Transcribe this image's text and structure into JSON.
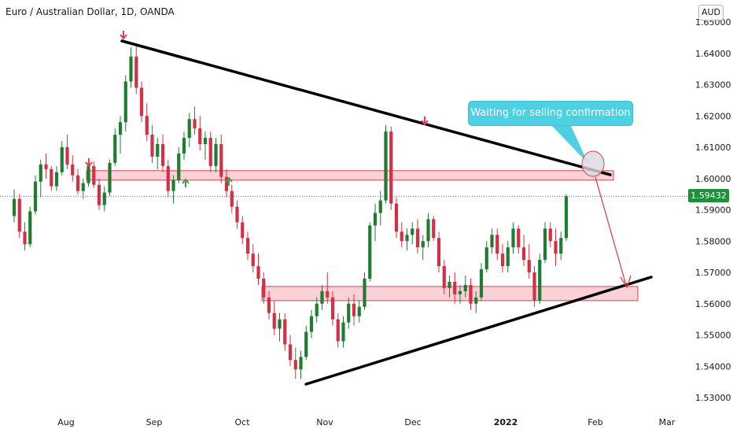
{
  "header": {
    "symbol_title": "Euro / Australian Dollar, 1D, OANDA",
    "currency": "AUD"
  },
  "colors": {
    "up": "#1e7d32",
    "down": "#d32f45",
    "zone_fill": "#f8c9cf",
    "zone_stroke": "#e0404f",
    "trendline": "#000000",
    "callout": "#4dd0e1",
    "arrow_down": "#e0404f",
    "arrow_up": "#43a047"
  },
  "annotation": {
    "callout_text": "Waiting for selling confirmation"
  },
  "chart_data": {
    "type": "candlestick",
    "title": "Euro / Australian Dollar, 1D, OANDA",
    "ylabel": "AUD",
    "ylim": [
      1.525,
      1.652
    ],
    "current_price": "1.59432",
    "y_ticks": [
      "1.65000",
      "1.64000",
      "1.63000",
      "1.62000",
      "1.61000",
      "1.60000",
      "1.59000",
      "1.58000",
      "1.57000",
      "1.56000",
      "1.55000",
      "1.54000",
      "1.53000"
    ],
    "x_ticks": [
      "Aug",
      "Sep",
      "Oct",
      "Nov",
      "Dec",
      "2022",
      "Feb",
      "Mar"
    ],
    "resistance_zone": [
      1.6004,
      1.6015
    ],
    "support_zone": [
      1.5627,
      1.5645
    ],
    "upper_trendline": {
      "from": [
        "Aug 20",
        1.6435
      ],
      "to": [
        "Feb 1",
        1.6002
      ]
    },
    "lower_trendline": {
      "from": [
        "Oct 31",
        1.5335
      ],
      "to": [
        "Feb 20",
        1.5677
      ]
    },
    "down_arrows": [
      "Aug 20",
      "Aug 8",
      "Dec 3"
    ],
    "up_arrows": [
      "Sep 10",
      "Sep 27"
    ],
    "candles": [
      [
        1.588,
        1.5965,
        1.586,
        1.5935
      ],
      [
        1.5935,
        1.595,
        1.581,
        1.583
      ],
      [
        1.583,
        1.586,
        1.577,
        1.579
      ],
      [
        1.579,
        1.591,
        1.578,
        1.5895
      ],
      [
        1.5895,
        1.601,
        1.5885,
        1.599
      ],
      [
        1.599,
        1.606,
        1.594,
        1.6045
      ],
      [
        1.6045,
        1.608,
        1.6,
        1.603
      ],
      [
        1.603,
        1.604,
        1.596,
        1.5975
      ],
      [
        1.5975,
        1.604,
        1.596,
        1.602
      ],
      [
        1.602,
        1.612,
        1.601,
        1.61
      ],
      [
        1.61,
        1.614,
        1.603,
        1.6045
      ],
      [
        1.6045,
        1.6075,
        1.599,
        1.601
      ],
      [
        1.601,
        1.603,
        1.595,
        1.596
      ],
      [
        1.596,
        1.6,
        1.5935,
        1.5985
      ],
      [
        1.5985,
        1.6055,
        1.5975,
        1.604
      ],
      [
        1.604,
        1.6055,
        1.597,
        1.598
      ],
      [
        1.598,
        1.6,
        1.59,
        1.5915
      ],
      [
        1.5915,
        1.5975,
        1.5895,
        1.5955
      ],
      [
        1.5955,
        1.606,
        1.5945,
        1.605
      ],
      [
        1.605,
        1.616,
        1.604,
        1.614
      ],
      [
        1.614,
        1.62,
        1.608,
        1.618
      ],
      [
        1.618,
        1.633,
        1.615,
        1.631
      ],
      [
        1.631,
        1.642,
        1.629,
        1.639
      ],
      [
        1.639,
        1.643,
        1.627,
        1.629
      ],
      [
        1.629,
        1.631,
        1.618,
        1.62
      ],
      [
        1.62,
        1.624,
        1.612,
        1.614
      ],
      [
        1.614,
        1.617,
        1.605,
        1.607
      ],
      [
        1.607,
        1.613,
        1.603,
        1.611
      ],
      [
        1.611,
        1.614,
        1.602,
        1.604
      ],
      [
        1.604,
        1.606,
        1.594,
        1.596
      ],
      [
        1.596,
        1.601,
        1.592,
        1.5995
      ],
      [
        1.5995,
        1.61,
        1.5985,
        1.608
      ],
      [
        1.608,
        1.615,
        1.606,
        1.613
      ],
      [
        1.613,
        1.621,
        1.61,
        1.619
      ],
      [
        1.619,
        1.623,
        1.614,
        1.616
      ],
      [
        1.616,
        1.62,
        1.609,
        1.611
      ],
      [
        1.611,
        1.615,
        1.606,
        1.613
      ],
      [
        1.613,
        1.615,
        1.602,
        1.604
      ],
      [
        1.604,
        1.613,
        1.602,
        1.611
      ],
      [
        1.611,
        1.614,
        1.5985,
        1.6005
      ],
      [
        1.6005,
        1.603,
        1.594,
        1.596
      ],
      [
        1.596,
        1.598,
        1.589,
        1.591
      ],
      [
        1.591,
        1.593,
        1.584,
        1.586
      ],
      [
        1.586,
        1.588,
        1.579,
        1.581
      ],
      [
        1.581,
        1.583,
        1.574,
        1.576
      ],
      [
        1.576,
        1.579,
        1.57,
        1.572
      ],
      [
        1.572,
        1.576,
        1.566,
        1.568
      ],
      [
        1.568,
        1.57,
        1.56,
        1.562
      ],
      [
        1.562,
        1.564,
        1.555,
        1.557
      ],
      [
        1.557,
        1.561,
        1.55,
        1.552
      ],
      [
        1.552,
        1.557,
        1.548,
        1.555
      ],
      [
        1.555,
        1.557,
        1.545,
        1.547
      ],
      [
        1.547,
        1.55,
        1.54,
        1.542
      ],
      [
        1.542,
        1.546,
        1.536,
        1.539
      ],
      [
        1.539,
        1.545,
        1.536,
        1.543
      ],
      [
        1.543,
        1.553,
        1.542,
        1.551
      ],
      [
        1.551,
        1.558,
        1.549,
        1.556
      ],
      [
        1.556,
        1.562,
        1.554,
        1.56
      ],
      [
        1.56,
        1.566,
        1.558,
        1.564
      ],
      [
        1.564,
        1.57,
        1.56,
        1.562
      ],
      [
        1.562,
        1.564,
        1.553,
        1.555
      ],
      [
        1.555,
        1.557,
        1.546,
        1.548
      ],
      [
        1.548,
        1.556,
        1.546,
        1.554
      ],
      [
        1.554,
        1.562,
        1.552,
        1.56
      ],
      [
        1.56,
        1.563,
        1.553,
        1.556
      ],
      [
        1.556,
        1.561,
        1.554,
        1.559
      ],
      [
        1.559,
        1.57,
        1.558,
        1.568
      ],
      [
        1.568,
        1.586,
        1.567,
        1.585
      ],
      [
        1.585,
        1.592,
        1.58,
        1.589
      ],
      [
        1.589,
        1.596,
        1.585,
        1.593
      ],
      [
        1.593,
        1.617,
        1.592,
        1.615
      ],
      [
        1.615,
        1.6165,
        1.59,
        1.592
      ],
      [
        1.592,
        1.594,
        1.581,
        1.583
      ],
      [
        1.583,
        1.586,
        1.578,
        1.58
      ],
      [
        1.58,
        1.584,
        1.577,
        1.582
      ],
      [
        1.582,
        1.586,
        1.579,
        1.584
      ],
      [
        1.584,
        1.587,
        1.576,
        1.578
      ],
      [
        1.578,
        1.582,
        1.574,
        1.58
      ],
      [
        1.58,
        1.589,
        1.578,
        1.587
      ],
      [
        1.587,
        1.588,
        1.58,
        1.581
      ],
      [
        1.581,
        1.583,
        1.57,
        1.572
      ],
      [
        1.572,
        1.574,
        1.563,
        1.565
      ],
      [
        1.565,
        1.569,
        1.562,
        1.567
      ],
      [
        1.567,
        1.57,
        1.56,
        1.563
      ],
      [
        1.563,
        1.566,
        1.56,
        1.564
      ],
      [
        1.564,
        1.569,
        1.562,
        1.566
      ],
      [
        1.566,
        1.568,
        1.558,
        1.56
      ],
      [
        1.56,
        1.564,
        1.557,
        1.562
      ],
      [
        1.562,
        1.573,
        1.561,
        1.571
      ],
      [
        1.571,
        1.58,
        1.57,
        1.578
      ],
      [
        1.578,
        1.584,
        1.576,
        1.582
      ],
      [
        1.582,
        1.584,
        1.574,
        1.576
      ],
      [
        1.576,
        1.579,
        1.57,
        1.572
      ],
      [
        1.572,
        1.58,
        1.57,
        1.578
      ],
      [
        1.578,
        1.586,
        1.576,
        1.584
      ],
      [
        1.584,
        1.585,
        1.576,
        1.578
      ],
      [
        1.578,
        1.582,
        1.572,
        1.574
      ],
      [
        1.574,
        1.579,
        1.568,
        1.57
      ],
      [
        1.57,
        1.572,
        1.559,
        1.561
      ],
      [
        1.561,
        1.576,
        1.56,
        1.574
      ],
      [
        1.574,
        1.586,
        1.573,
        1.584
      ],
      [
        1.584,
        1.586,
        1.578,
        1.58
      ],
      [
        1.58,
        1.584,
        1.572,
        1.576
      ],
      [
        1.576,
        1.583,
        1.574,
        1.581
      ],
      [
        1.581,
        1.595,
        1.58,
        1.5943
      ]
    ]
  }
}
